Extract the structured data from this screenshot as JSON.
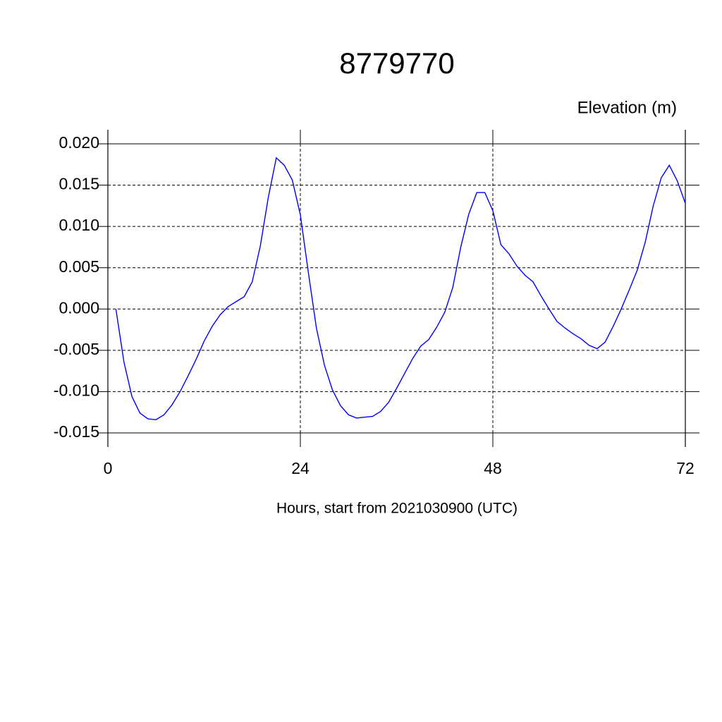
{
  "chart_data": {
    "type": "line",
    "title": "8779770",
    "y_label": "Elevation (m)",
    "x_label": "Hours, start from 2021030900 (UTC)",
    "x": [
      1,
      2,
      3,
      4,
      5,
      6,
      7,
      8,
      9,
      10,
      11,
      12,
      13,
      14,
      15,
      16,
      17,
      18,
      19,
      20,
      21,
      22,
      23,
      24,
      25,
      26,
      27,
      28,
      29,
      30,
      31,
      32,
      33,
      34,
      35,
      36,
      37,
      38,
      39,
      40,
      41,
      42,
      43,
      44,
      45,
      46,
      47,
      48,
      49,
      50,
      51,
      52,
      53,
      54,
      55,
      56,
      57,
      58,
      59,
      60,
      61,
      62,
      63,
      64,
      65,
      66,
      67,
      68,
      69,
      70,
      71,
      72
    ],
    "values": [
      0.0,
      -0.0064,
      -0.0106,
      -0.0126,
      -0.0133,
      -0.0134,
      -0.0128,
      -0.0116,
      -0.01,
      -0.0081,
      -0.0061,
      -0.0039,
      -0.0021,
      -0.0007,
      0.0003,
      0.0009,
      0.0015,
      0.0033,
      0.0076,
      0.0135,
      0.0183,
      0.0174,
      0.0156,
      0.0114,
      0.0044,
      -0.0023,
      -0.0068,
      -0.0098,
      -0.0117,
      -0.0128,
      -0.0132,
      -0.0131,
      -0.013,
      -0.0124,
      -0.0113,
      -0.0096,
      -0.0078,
      -0.006,
      -0.0045,
      -0.0037,
      -0.0022,
      -0.0004,
      0.0026,
      0.0075,
      0.0115,
      0.0141,
      0.0141,
      0.0119,
      0.0078,
      0.0067,
      0.0052,
      0.0041,
      0.0033,
      0.0016,
      0.0,
      -0.0015,
      -0.0023,
      -0.003,
      -0.0036,
      -0.0044,
      -0.0048,
      -0.004,
      -0.0021,
      0.0,
      0.0023,
      0.0047,
      0.0081,
      0.0125,
      0.0159,
      0.0174,
      0.0155,
      0.0128
    ],
    "color": "#0000ff",
    "xlim": [
      0,
      72
    ],
    "xticks": [
      0,
      24,
      48,
      72
    ],
    "ylim": [
      -0.015,
      0.02
    ],
    "yticks": [
      {
        "value": -0.015,
        "label": "-0.015"
      },
      {
        "value": -0.01,
        "label": "-0.010"
      },
      {
        "value": -0.005,
        "label": "-0.005"
      },
      {
        "value": 0,
        "label": "0.000"
      },
      {
        "value": 0.005,
        "label": "0.005"
      },
      {
        "value": 0.01,
        "label": "0.010"
      },
      {
        "value": 0.015,
        "label": "0.015"
      },
      {
        "value": 0.02,
        "label": "0.020"
      }
    ],
    "grid": true
  }
}
